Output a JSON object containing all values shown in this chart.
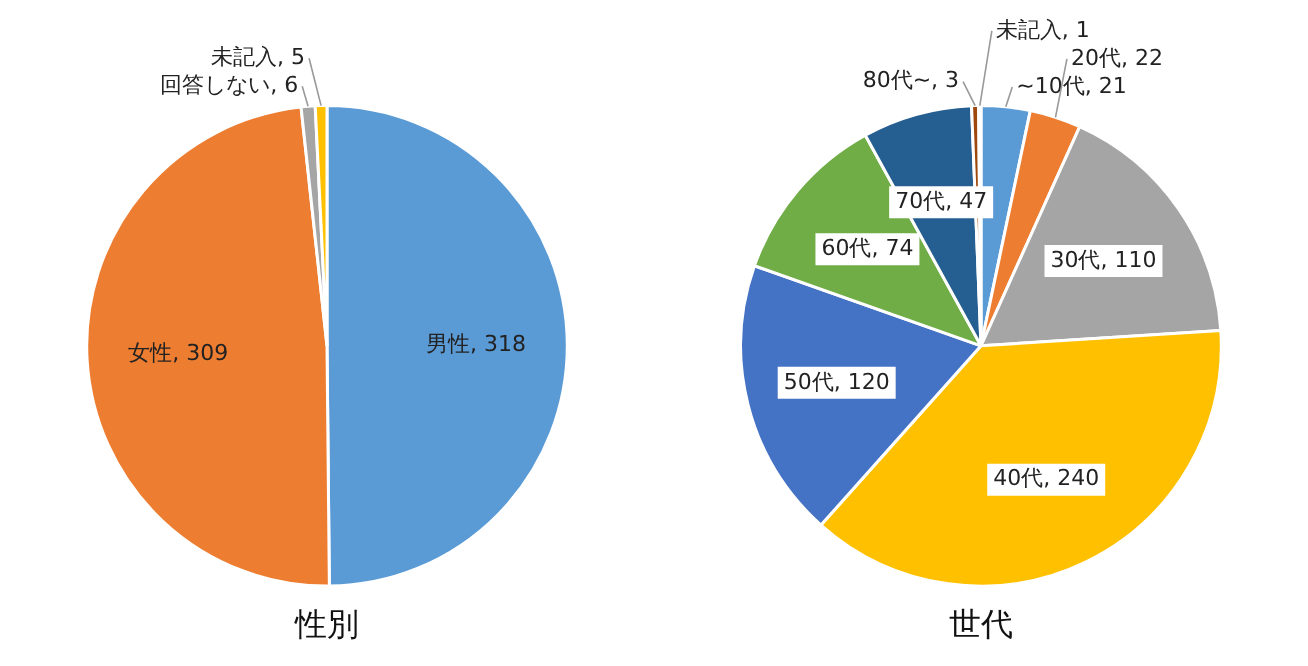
{
  "chart_data": [
    {
      "type": "pie",
      "title": "性別",
      "categories": [
        "男性",
        "女性",
        "回答しない",
        "未記入"
      ],
      "values": [
        318,
        309,
        6,
        5
      ],
      "colors": [
        "#5b9bd5",
        "#ed7d31",
        "#a5a5a5",
        "#ffc000"
      ],
      "value_labels": [
        ", 318",
        ", 309",
        ", 6",
        ", 5"
      ]
    },
    {
      "type": "pie",
      "title": "世代",
      "categories": [
        "~10代",
        "20代",
        "30代",
        "40代",
        "50代",
        "60代",
        "70代",
        "80代~",
        "未記入"
      ],
      "values": [
        21,
        22,
        110,
        240,
        120,
        74,
        47,
        3,
        1
      ],
      "colors": [
        "#5b9bd5",
        "#ed7d31",
        "#a5a5a5",
        "#ffc000",
        "#4472c4",
        "#70ad47",
        "#255e91",
        "#9e480e",
        "#636363"
      ],
      "value_labels": [
        ", 21",
        ", 22",
        ", 110",
        ", 240",
        ", 120",
        ", 74",
        ", 47",
        ", 3",
        ", 1"
      ]
    }
  ]
}
